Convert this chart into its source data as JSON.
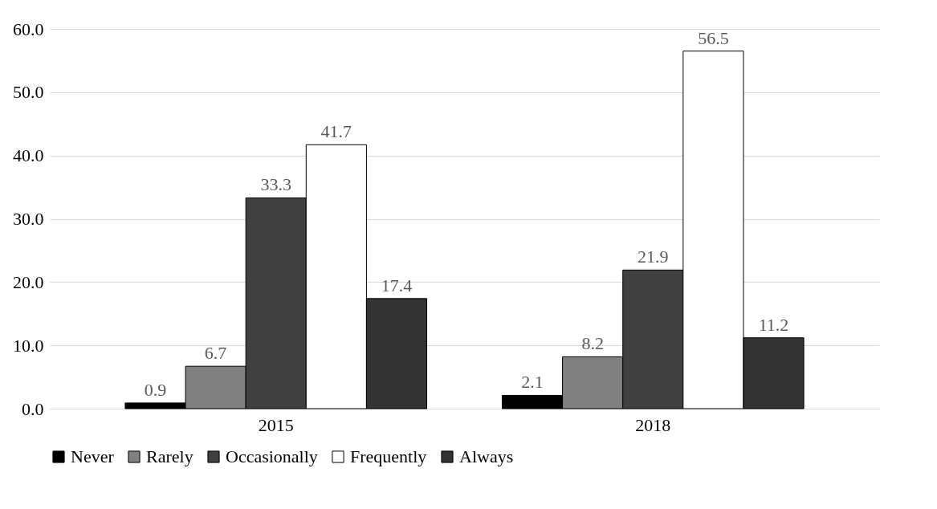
{
  "chart_data": {
    "type": "bar",
    "categories": [
      "2015",
      "2018"
    ],
    "series": [
      {
        "name": "Never",
        "color": "#000000",
        "values": [
          0.9,
          2.1
        ]
      },
      {
        "name": "Rarely",
        "color": "#808080",
        "values": [
          6.7,
          8.2
        ]
      },
      {
        "name": "Occasionally",
        "color": "#404040",
        "values": [
          33.3,
          21.9
        ]
      },
      {
        "name": "Frequently",
        "color": "#ffffff",
        "values": [
          41.7,
          56.5
        ]
      },
      {
        "name": "Always",
        "color": "#333333",
        "values": [
          17.4,
          11.2
        ]
      }
    ],
    "ylim": [
      0,
      60
    ],
    "yticks": [
      {
        "value": 0,
        "label": "0.0"
      },
      {
        "value": 10,
        "label": "10.0"
      },
      {
        "value": 20,
        "label": "20.0"
      },
      {
        "value": 30,
        "label": "30.0"
      },
      {
        "value": 40,
        "label": "40.0"
      },
      {
        "value": 50,
        "label": "50.0"
      },
      {
        "value": 60,
        "label": "60.0"
      }
    ],
    "grid": "y",
    "legend": "bottom",
    "data_labels": true
  }
}
